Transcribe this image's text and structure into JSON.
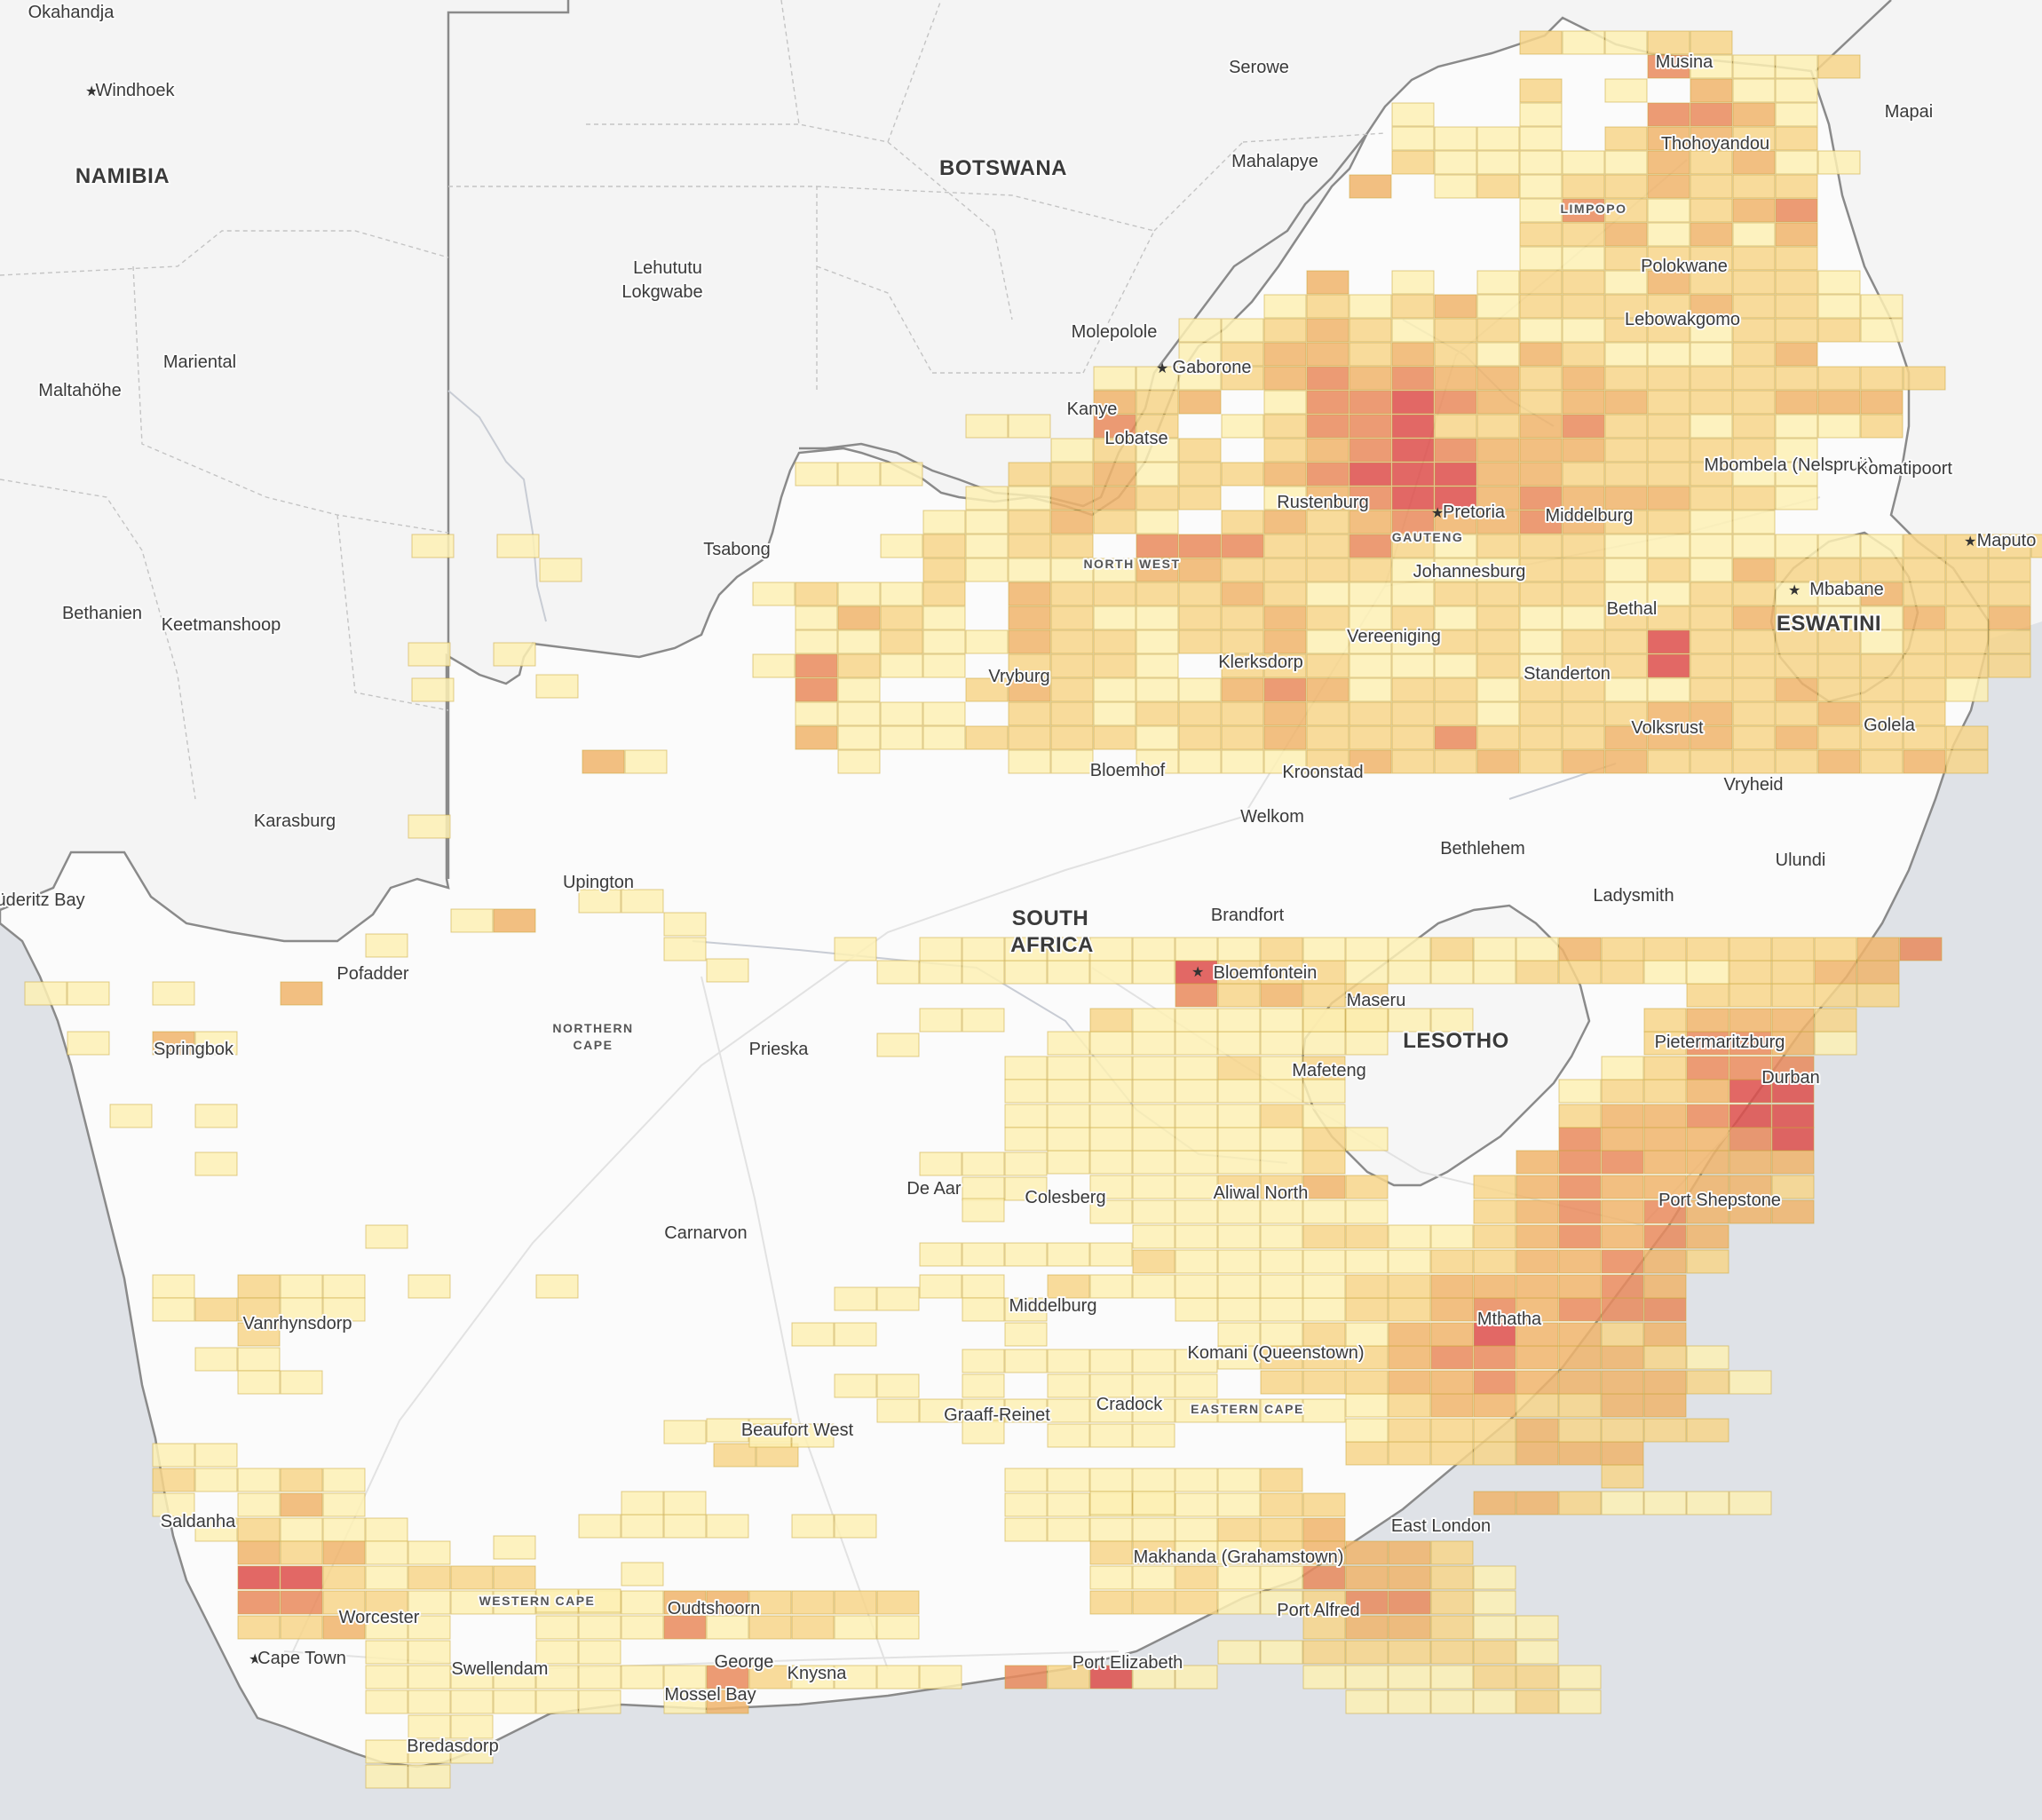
{
  "map": {
    "countries": [
      "NAMIBIA",
      "BOTSWANA",
      "SOUTH AFRICA",
      "LESOTHO",
      "ESWATINI"
    ],
    "provinces": [
      "NORTHERN CAPE",
      "WESTERN CAPE",
      "EASTERN CAPE",
      "NORTH WEST",
      "GAUTENG",
      "LIMPOPO"
    ],
    "capitals": [
      "Windhoek",
      "Gaborone",
      "Pretoria",
      "Bloemfontein",
      "Cape Town",
      "Maseru",
      "Mbabane",
      "Maputo"
    ],
    "cities": [
      "Okahandja",
      "Windhoek",
      "Mariental",
      "Maltahöhe",
      "Bethanien",
      "Keetmanshoop",
      "Karasburg",
      "Lüderitz Bay",
      "Serowe",
      "Mahalapye",
      "Mapai",
      "Lehututu",
      "Lokgwabe",
      "Molepolole",
      "Gaborone",
      "Kanye",
      "Lobatse",
      "Tsabong",
      "Musina",
      "Thohoyandou",
      "Polokwane",
      "Lebowakgomo",
      "Mbombela (Nelspruit)",
      "Komatipoort",
      "Maputo",
      "Mbabane",
      "Rustenburg",
      "Pretoria",
      "Johannesburg",
      "Middelburg",
      "Bethal",
      "Vereeniging",
      "Standerton",
      "Klerksdorp",
      "Vryburg",
      "Volksrust",
      "Golela",
      "Vryheid",
      "Kroonstad",
      "Bloemhof",
      "Welkom",
      "Bethlehem",
      "Ulundi",
      "Ladysmith",
      "Upington",
      "Pofadder",
      "Springbok",
      "Prieska",
      "Brandfort",
      "Bloemfontein",
      "Maseru",
      "Mafeteng",
      "Pietermaritzburg",
      "Durban",
      "De Aar",
      "Colesberg",
      "Aliwal North",
      "Port Shepstone",
      "Carnarvon",
      "Vanrhynsdorp",
      "Middelburg",
      "Mthatha",
      "Komani (Queenstown)",
      "Cradock",
      "Beaufort West",
      "Graaff-Reinet",
      "Saldanha",
      "East London",
      "Makhanda (Grahamstown)",
      "Worcester",
      "Oudtshoorn",
      "Port Alfred",
      "Cape Town",
      "Swellendam",
      "George",
      "Knysna",
      "Port Elizabeth",
      "Mossel Bay",
      "Bredasdorp",
      "Serowe"
    ],
    "layer": {
      "type": "grid-heatmap",
      "colors": [
        "#fdf0b4",
        "#f7d58a",
        "#f0b46b",
        "#e98a5c",
        "#dd4d4a"
      ],
      "levels_description_hidden": true
    }
  }
}
